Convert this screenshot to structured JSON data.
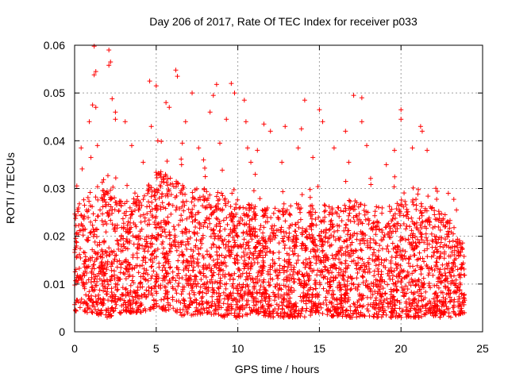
{
  "chart_data": {
    "type": "scatter",
    "title": "Day 206 of 2017, Rate Of TEC Index for receiver p033",
    "xlabel": "GPS time / hours",
    "ylabel": "ROTI / TECUs",
    "xlim": [
      0,
      25
    ],
    "ylim": [
      0,
      0.06
    ],
    "x_ticks": [
      0,
      5,
      10,
      15,
      20,
      25
    ],
    "y_ticks": [
      0,
      0.01,
      0.02,
      0.03,
      0.04,
      0.05,
      0.06
    ],
    "x_tick_labels": [
      "0",
      "5",
      "10",
      "15",
      "20",
      "25"
    ],
    "y_tick_labels": [
      "0",
      "0.01",
      "0.02",
      "0.03",
      "0.04",
      "0.05",
      "0.06"
    ],
    "grid": true,
    "marker": "plus",
    "marker_color": "#ff0000",
    "x_range_of_data": [
      0,
      23.9
    ],
    "series": [
      {
        "points": [
          [
            1.2,
            0.0598
          ],
          [
            2.1,
            0.059
          ],
          [
            2.2,
            0.0565
          ],
          [
            2.1,
            0.0558
          ],
          [
            1.3,
            0.0545
          ],
          [
            1.2,
            0.0538
          ],
          [
            4.6,
            0.0525
          ],
          [
            6.2,
            0.0548
          ],
          [
            6.3,
            0.0535
          ],
          [
            9.6,
            0.052
          ],
          [
            8.7,
            0.0518
          ],
          [
            9.8,
            0.05
          ],
          [
            5.0,
            0.0515
          ],
          [
            7.2,
            0.05
          ],
          [
            8.5,
            0.0495
          ],
          [
            1.1,
            0.0475
          ],
          [
            1.3,
            0.047
          ],
          [
            2.3,
            0.0488
          ],
          [
            2.5,
            0.046
          ],
          [
            5.6,
            0.048
          ],
          [
            5.8,
            0.047
          ],
          [
            10.4,
            0.0485
          ],
          [
            14.1,
            0.0485
          ],
          [
            15.0,
            0.0465
          ],
          [
            17.1,
            0.0495
          ],
          [
            17.6,
            0.049
          ],
          [
            20.0,
            0.0465
          ],
          [
            0.9,
            0.044
          ],
          [
            2.5,
            0.0445
          ],
          [
            3.1,
            0.044
          ],
          [
            4.7,
            0.043
          ],
          [
            6.8,
            0.044
          ],
          [
            8.3,
            0.046
          ],
          [
            9.3,
            0.0445
          ],
          [
            10.5,
            0.044
          ],
          [
            11.6,
            0.0435
          ],
          [
            12.9,
            0.043
          ],
          [
            15.2,
            0.044
          ],
          [
            17.6,
            0.044
          ],
          [
            20.0,
            0.0445
          ],
          [
            21.2,
            0.043
          ],
          [
            21.3,
            0.042
          ],
          [
            12.0,
            0.042
          ],
          [
            13.9,
            0.0425
          ],
          [
            16.6,
            0.042
          ],
          [
            0.4,
            0.0385
          ],
          [
            1.4,
            0.039
          ],
          [
            3.5,
            0.039
          ],
          [
            5.1,
            0.04
          ],
          [
            6.6,
            0.0395
          ],
          [
            7.6,
            0.0385
          ],
          [
            8.9,
            0.0395
          ],
          [
            10.6,
            0.0385
          ],
          [
            11.2,
            0.038
          ],
          [
            13.7,
            0.0385
          ],
          [
            15.9,
            0.0385
          ],
          [
            17.9,
            0.039
          ],
          [
            19.6,
            0.038
          ],
          [
            20.7,
            0.0385
          ],
          [
            21.6,
            0.038
          ],
          [
            1.0,
            0.0365
          ],
          [
            4.2,
            0.0355
          ],
          [
            7.9,
            0.036
          ],
          [
            10.8,
            0.0355
          ],
          [
            12.7,
            0.0355
          ],
          [
            14.6,
            0.0365
          ],
          [
            16.8,
            0.0355
          ],
          [
            19.1,
            0.035
          ],
          [
            22.9,
            0.029
          ],
          [
            23.4,
            0.0255
          ]
        ],
        "density_profile": {
          "comment_free_values": true,
          "hour_bins": [
            0,
            1,
            2,
            3,
            4,
            5,
            6,
            7,
            8,
            9,
            10,
            11,
            12,
            13,
            14,
            15,
            16,
            17,
            18,
            19,
            20,
            21,
            22,
            23,
            23.9
          ],
          "typical_low": [
            0.004,
            0.004,
            0.003,
            0.004,
            0.004,
            0.005,
            0.004,
            0.003,
            0.004,
            0.003,
            0.003,
            0.004,
            0.003,
            0.003,
            0.003,
            0.004,
            0.003,
            0.003,
            0.003,
            0.003,
            0.003,
            0.003,
            0.003,
            0.003,
            0.004
          ],
          "typical_high": [
            0.026,
            0.03,
            0.032,
            0.028,
            0.028,
            0.034,
            0.033,
            0.03,
            0.03,
            0.029,
            0.027,
            0.027,
            0.026,
            0.026,
            0.028,
            0.027,
            0.026,
            0.028,
            0.027,
            0.026,
            0.028,
            0.028,
            0.026,
            0.024,
            0.018
          ]
        }
      }
    ]
  }
}
